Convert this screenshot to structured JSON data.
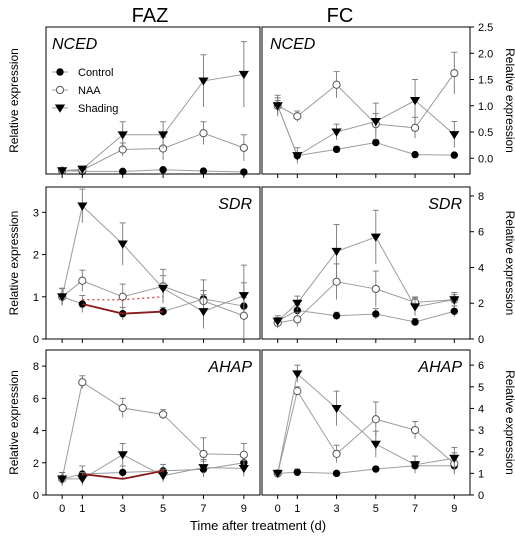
{
  "figure": {
    "col_titles": [
      "FAZ",
      "FC"
    ],
    "xlabel": "Time after treatment (d)",
    "legend": [
      "Control",
      "NAA",
      "Shading"
    ]
  },
  "chart_data": [
    {
      "type": "line",
      "title": "NCED",
      "column": "FAZ",
      "ylabel": "Relative expression",
      "y_axis_side": "left",
      "ylim": [
        0,
        45
      ],
      "yticks": [],
      "x": [
        0,
        1,
        3,
        5,
        7,
        9
      ],
      "xlim": [
        -0.8,
        9.8
      ],
      "series": [
        {
          "name": "Control",
          "marker": "filled-circle",
          "values": [
            1,
            0.8,
            0.8,
            1.3,
            0.9,
            0.6
          ],
          "errors": [
            0.4,
            0.3,
            0.3,
            0.3,
            0.3,
            0.3
          ]
        },
        {
          "name": "NAA",
          "marker": "open-circle",
          "values": [
            1,
            1.2,
            7.5,
            7.8,
            12.5,
            8
          ],
          "errors": [
            0.4,
            0.4,
            2,
            3.5,
            3.5,
            4
          ]
        },
        {
          "name": "Shading",
          "marker": "filled-triangle-down",
          "values": [
            1,
            1.5,
            12,
            12,
            28.5,
            30.5
          ],
          "errors": [
            0.4,
            0.8,
            4,
            4,
            8,
            10
          ]
        }
      ],
      "legend_position": "upper-left"
    },
    {
      "type": "line",
      "title": "NCED",
      "column": "FC",
      "ylabel": "Relative expression",
      "y_axis_side": "right",
      "ylim": [
        -0.3,
        2.5
      ],
      "yticks": [
        "0.0",
        "0.5",
        "1.0",
        "1.5",
        "2.0",
        "2.5"
      ],
      "x": [
        0,
        1,
        3,
        5,
        7,
        9
      ],
      "xlim": [
        -0.8,
        9.8
      ],
      "series": [
        {
          "name": "Control",
          "marker": "filled-circle",
          "values": [
            1.0,
            0.05,
            0.17,
            0.3,
            0.07,
            0.06
          ],
          "errors": [
            0.1,
            0.05,
            0.05,
            0.05,
            0.03,
            0.03
          ]
        },
        {
          "name": "NAA",
          "marker": "open-circle",
          "values": [
            1.0,
            0.8,
            1.4,
            0.65,
            0.58,
            1.62
          ],
          "errors": [
            0.15,
            0.1,
            0.25,
            0.2,
            0.2,
            0.4
          ]
        },
        {
          "name": "Shading",
          "marker": "filled-triangle-down",
          "values": [
            1.0,
            0.05,
            0.5,
            0.7,
            1.1,
            0.45
          ],
          "errors": [
            0.2,
            0.15,
            0.15,
            0.35,
            0.4,
            0.25
          ]
        }
      ]
    },
    {
      "type": "line",
      "title": "SDR",
      "column": "FAZ",
      "ylabel": "Relative expression",
      "y_axis_side": "left",
      "ylim": [
        0,
        3.6
      ],
      "yticks": [
        "0",
        "1",
        "2",
        "3"
      ],
      "x": [
        0,
        1,
        3,
        5,
        7,
        9
      ],
      "xlim": [
        -0.8,
        9.8
      ],
      "series": [
        {
          "name": "Control",
          "marker": "filled-circle",
          "values": [
            1,
            0.83,
            0.6,
            0.65,
            0.95,
            0.78
          ],
          "errors": [
            0.2,
            0.2,
            0.15,
            0.1,
            0.2,
            0.2
          ]
        },
        {
          "name": "NAA",
          "marker": "open-circle",
          "values": [
            1,
            1.38,
            1.0,
            1.25,
            0.9,
            0.55
          ],
          "errors": [
            0.2,
            0.25,
            0.3,
            0.4,
            0.5,
            1.2
          ]
        },
        {
          "name": "Shading",
          "marker": "filled-triangle-down",
          "values": [
            1,
            3.15,
            2.25,
            1.2,
            0.65,
            1.03
          ],
          "errors": [
            0.2,
            0.4,
            0.5,
            0.3,
            0.4,
            0.3
          ]
        }
      ]
    },
    {
      "type": "line",
      "title": "SDR",
      "column": "FC",
      "ylabel": "Relative expression",
      "y_axis_side": "right",
      "ylim": [
        0,
        8.5
      ],
      "yticks": [
        "0",
        "2",
        "4",
        "6",
        "8"
      ],
      "x": [
        0,
        1,
        3,
        5,
        7,
        9
      ],
      "xlim": [
        -0.8,
        9.8
      ],
      "series": [
        {
          "name": "Control",
          "marker": "filled-circle",
          "values": [
            1,
            1.6,
            1.3,
            1.4,
            0.95,
            1.55
          ],
          "errors": [
            0.2,
            0.3,
            0.2,
            0.3,
            0.2,
            0.3
          ]
        },
        {
          "name": "NAA",
          "marker": "open-circle",
          "values": [
            0.9,
            1.1,
            3.2,
            2.8,
            2.05,
            2.2
          ],
          "errors": [
            0.3,
            0.4,
            1.0,
            1.0,
            0.3,
            0.3
          ]
        },
        {
          "name": "Shading",
          "marker": "filled-triangle-down",
          "values": [
            1,
            2.0,
            4.9,
            5.7,
            1.8,
            2.2
          ],
          "errors": [
            0.3,
            0.4,
            1.5,
            1.5,
            0.5,
            0.4
          ]
        }
      ]
    },
    {
      "type": "line",
      "title": "AHAP",
      "column": "FAZ",
      "ylabel": "Relative expression",
      "y_axis_side": "left",
      "ylim": [
        0,
        9
      ],
      "yticks": [
        "0",
        "2",
        "4",
        "6",
        "8"
      ],
      "x": [
        0,
        1,
        3,
        5,
        7,
        9
      ],
      "xlim": [
        -0.8,
        9.8
      ],
      "series": [
        {
          "name": "Control",
          "marker": "filled-circle",
          "values": [
            1,
            1.3,
            1.4,
            1.5,
            1.6,
            2.0
          ],
          "errors": [
            0.4,
            0.5,
            0.4,
            0.4,
            0.5,
            0.6
          ]
        },
        {
          "name": "NAA",
          "marker": "open-circle",
          "values": [
            1,
            7.0,
            5.4,
            5.0,
            2.55,
            2.5
          ],
          "errors": [
            0.4,
            0.4,
            0.6,
            0.3,
            1.0,
            0.7
          ]
        },
        {
          "name": "Shading",
          "marker": "filled-triangle-down",
          "values": [
            1,
            1.0,
            2.5,
            1.2,
            1.7,
            1.65
          ],
          "errors": [
            0.4,
            0.4,
            0.7,
            0.4,
            0.5,
            0.5
          ]
        }
      ]
    },
    {
      "type": "line",
      "title": "AHAP",
      "column": "FC",
      "ylabel": "Relative expression",
      "y_axis_side": "right",
      "ylim": [
        0,
        6.7
      ],
      "yticks": [
        "0",
        "1",
        "2",
        "3",
        "4",
        "5",
        "6"
      ],
      "x": [
        0,
        1,
        3,
        5,
        7,
        9
      ],
      "xlim": [
        -0.8,
        9.8
      ],
      "series": [
        {
          "name": "Control",
          "marker": "filled-circle",
          "values": [
            1,
            1.05,
            1.0,
            1.2,
            1.35,
            1.35
          ],
          "errors": [
            0.1,
            0.15,
            0.1,
            0.1,
            0.2,
            0.3
          ]
        },
        {
          "name": "NAA",
          "marker": "open-circle",
          "values": [
            1,
            4.8,
            1.9,
            3.5,
            3.0,
            1.45
          ],
          "errors": [
            0.1,
            0.2,
            0.4,
            0.8,
            0.4,
            0.5
          ]
        },
        {
          "name": "Shading",
          "marker": "filled-triangle-down",
          "values": [
            1,
            5.6,
            4.0,
            2.35,
            1.4,
            1.7
          ],
          "errors": [
            0.1,
            0.4,
            0.8,
            0.6,
            0.4,
            0.5
          ]
        }
      ]
    }
  ]
}
